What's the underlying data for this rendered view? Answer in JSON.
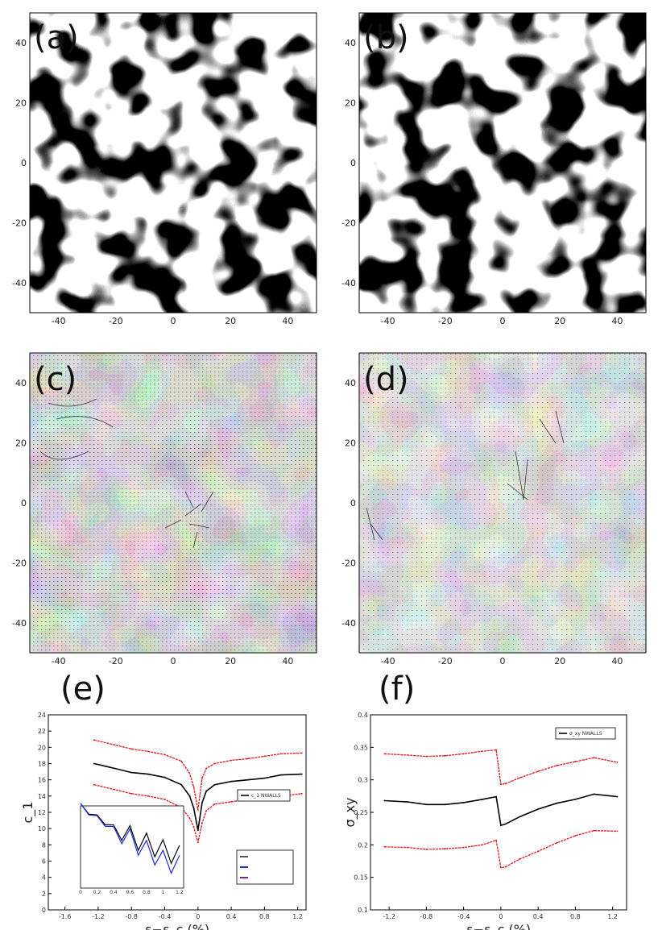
{
  "panels": {
    "a": {
      "label": "(a)"
    },
    "b": {
      "label": "(b)"
    },
    "c": {
      "label": "(c)"
    },
    "d": {
      "label": "(d)"
    },
    "e": {
      "label": "(e)"
    },
    "f": {
      "label": "(f)"
    }
  },
  "map_axes": {
    "x_ticks": [
      "-40",
      "-20",
      "0",
      "20",
      "40"
    ],
    "y_ticks": [
      "40",
      "20",
      "0",
      "-20",
      "-40"
    ],
    "range": [
      -50,
      50
    ]
  },
  "colors": {
    "black_series": "#000000",
    "red_series": "#e8141b",
    "blue_series": "#1d2bd6",
    "purple_series": "#7a2a8a",
    "gray_field": "#8c8c8c"
  },
  "chart_data": [
    {
      "panel": "e",
      "type": "line",
      "xlabel": "ε−ε_c (%)",
      "ylabel": "c_1",
      "xlim": [
        -1.8,
        1.3
      ],
      "ylim": [
        0,
        24
      ],
      "x_ticks": [
        "-1.6",
        "-1.2",
        "-0.8",
        "-0.4",
        "0",
        "0.4",
        "0.8",
        "1.2"
      ],
      "y_ticks": [
        "0",
        "2",
        "4",
        "6",
        "8",
        "10",
        "12",
        "14",
        "16",
        "18",
        "20",
        "22",
        "24"
      ],
      "legend": "c_1 NWALLS",
      "series": [
        {
          "color": "black",
          "x": [
            -1.25,
            -1.0,
            -0.8,
            -0.6,
            -0.4,
            -0.2,
            -0.1,
            -0.05,
            0.0,
            0.05,
            0.1,
            0.2,
            0.4,
            0.6,
            0.8,
            1.0,
            1.25
          ],
          "values": [
            18.0,
            17.4,
            16.9,
            16.7,
            16.3,
            15.4,
            14.0,
            12.5,
            9.8,
            13.2,
            14.6,
            15.4,
            15.8,
            16.0,
            16.2,
            16.6,
            16.7
          ]
        },
        {
          "color": "red",
          "x": [
            -1.25,
            -1.0,
            -0.8,
            -0.6,
            -0.4,
            -0.2,
            -0.1,
            -0.05,
            0.0,
            0.05,
            0.1,
            0.2,
            0.4,
            0.6,
            0.8,
            1.0,
            1.25
          ],
          "values": [
            20.9,
            20.3,
            19.8,
            19.5,
            19.1,
            18.3,
            16.8,
            15.1,
            12.3,
            16.2,
            17.4,
            18.0,
            18.4,
            18.6,
            18.9,
            19.2,
            19.3
          ]
        },
        {
          "color": "red",
          "x": [
            -1.25,
            -1.0,
            -0.8,
            -0.6,
            -0.4,
            -0.2,
            -0.1,
            -0.05,
            0.0,
            0.05,
            0.1,
            0.2,
            0.4,
            0.6,
            0.8,
            1.0,
            1.25
          ],
          "values": [
            15.4,
            14.8,
            14.3,
            14.0,
            13.6,
            12.6,
            11.3,
            10.2,
            8.3,
            10.7,
            12.2,
            13.0,
            13.3,
            13.6,
            13.8,
            14.0,
            14.3
          ]
        }
      ],
      "inset": {
        "x_ticks": [
          "0",
          "0.2",
          "0.4",
          "0.6",
          "0.8",
          "1",
          "1.2"
        ],
        "series": [
          {
            "color": "black",
            "x": [
              0.0,
              0.1,
              0.2,
              0.3,
              0.4,
              0.5,
              0.6,
              0.7,
              0.8,
              0.9,
              1.0,
              1.1,
              1.2
            ],
            "values": [
              1.0,
              0.93,
              0.86,
              0.8,
              0.74,
              0.7,
              0.64,
              0.58,
              0.55,
              0.5,
              0.47,
              0.42,
              0.4
            ]
          },
          {
            "color": "blue",
            "x": [
              0.0,
              0.1,
              0.2,
              0.3,
              0.4,
              0.5,
              0.6,
              0.7,
              0.8,
              0.9,
              1.0,
              1.1,
              1.2
            ],
            "values": [
              1.0,
              0.92,
              0.85,
              0.78,
              0.72,
              0.66,
              0.6,
              0.52,
              0.46,
              0.4,
              0.34,
              0.3,
              0.28
            ]
          }
        ]
      }
    },
    {
      "panel": "f",
      "type": "line",
      "xlabel": "ε−ε_c (%)",
      "ylabel": "σ_xy",
      "xlim": [
        -1.4,
        1.35
      ],
      "ylim": [
        0.1,
        0.4
      ],
      "x_ticks": [
        "-1.2",
        "-0.8",
        "-0.4",
        "0",
        "0.4",
        "0.8",
        "1.2"
      ],
      "y_ticks": [
        "0.1",
        "0.15",
        "0.2",
        "0.25",
        "0.3",
        "0.35",
        "0.4"
      ],
      "legend": "σ_xy NWALLS",
      "series": [
        {
          "color": "black",
          "x": [
            -1.25,
            -1.0,
            -0.8,
            -0.6,
            -0.4,
            -0.2,
            -0.05,
            0.0,
            0.05,
            0.2,
            0.4,
            0.6,
            0.8,
            1.0,
            1.25
          ],
          "values": [
            0.268,
            0.266,
            0.262,
            0.262,
            0.265,
            0.27,
            0.274,
            0.23,
            0.232,
            0.243,
            0.255,
            0.264,
            0.27,
            0.278,
            0.274
          ]
        },
        {
          "color": "red",
          "x": [
            -1.25,
            -1.0,
            -0.8,
            -0.6,
            -0.4,
            -0.2,
            -0.05,
            0.0,
            0.05,
            0.2,
            0.4,
            0.6,
            0.8,
            1.0,
            1.25
          ],
          "values": [
            0.34,
            0.338,
            0.336,
            0.337,
            0.34,
            0.344,
            0.346,
            0.293,
            0.294,
            0.303,
            0.313,
            0.322,
            0.328,
            0.334,
            0.327
          ]
        },
        {
          "color": "red",
          "x": [
            -1.25,
            -1.0,
            -0.8,
            -0.6,
            -0.4,
            -0.2,
            -0.05,
            0.0,
            0.05,
            0.2,
            0.4,
            0.6,
            0.8,
            1.0,
            1.25
          ],
          "values": [
            0.197,
            0.196,
            0.193,
            0.194,
            0.196,
            0.2,
            0.207,
            0.165,
            0.166,
            0.178,
            0.19,
            0.203,
            0.214,
            0.222,
            0.221
          ]
        }
      ]
    }
  ]
}
